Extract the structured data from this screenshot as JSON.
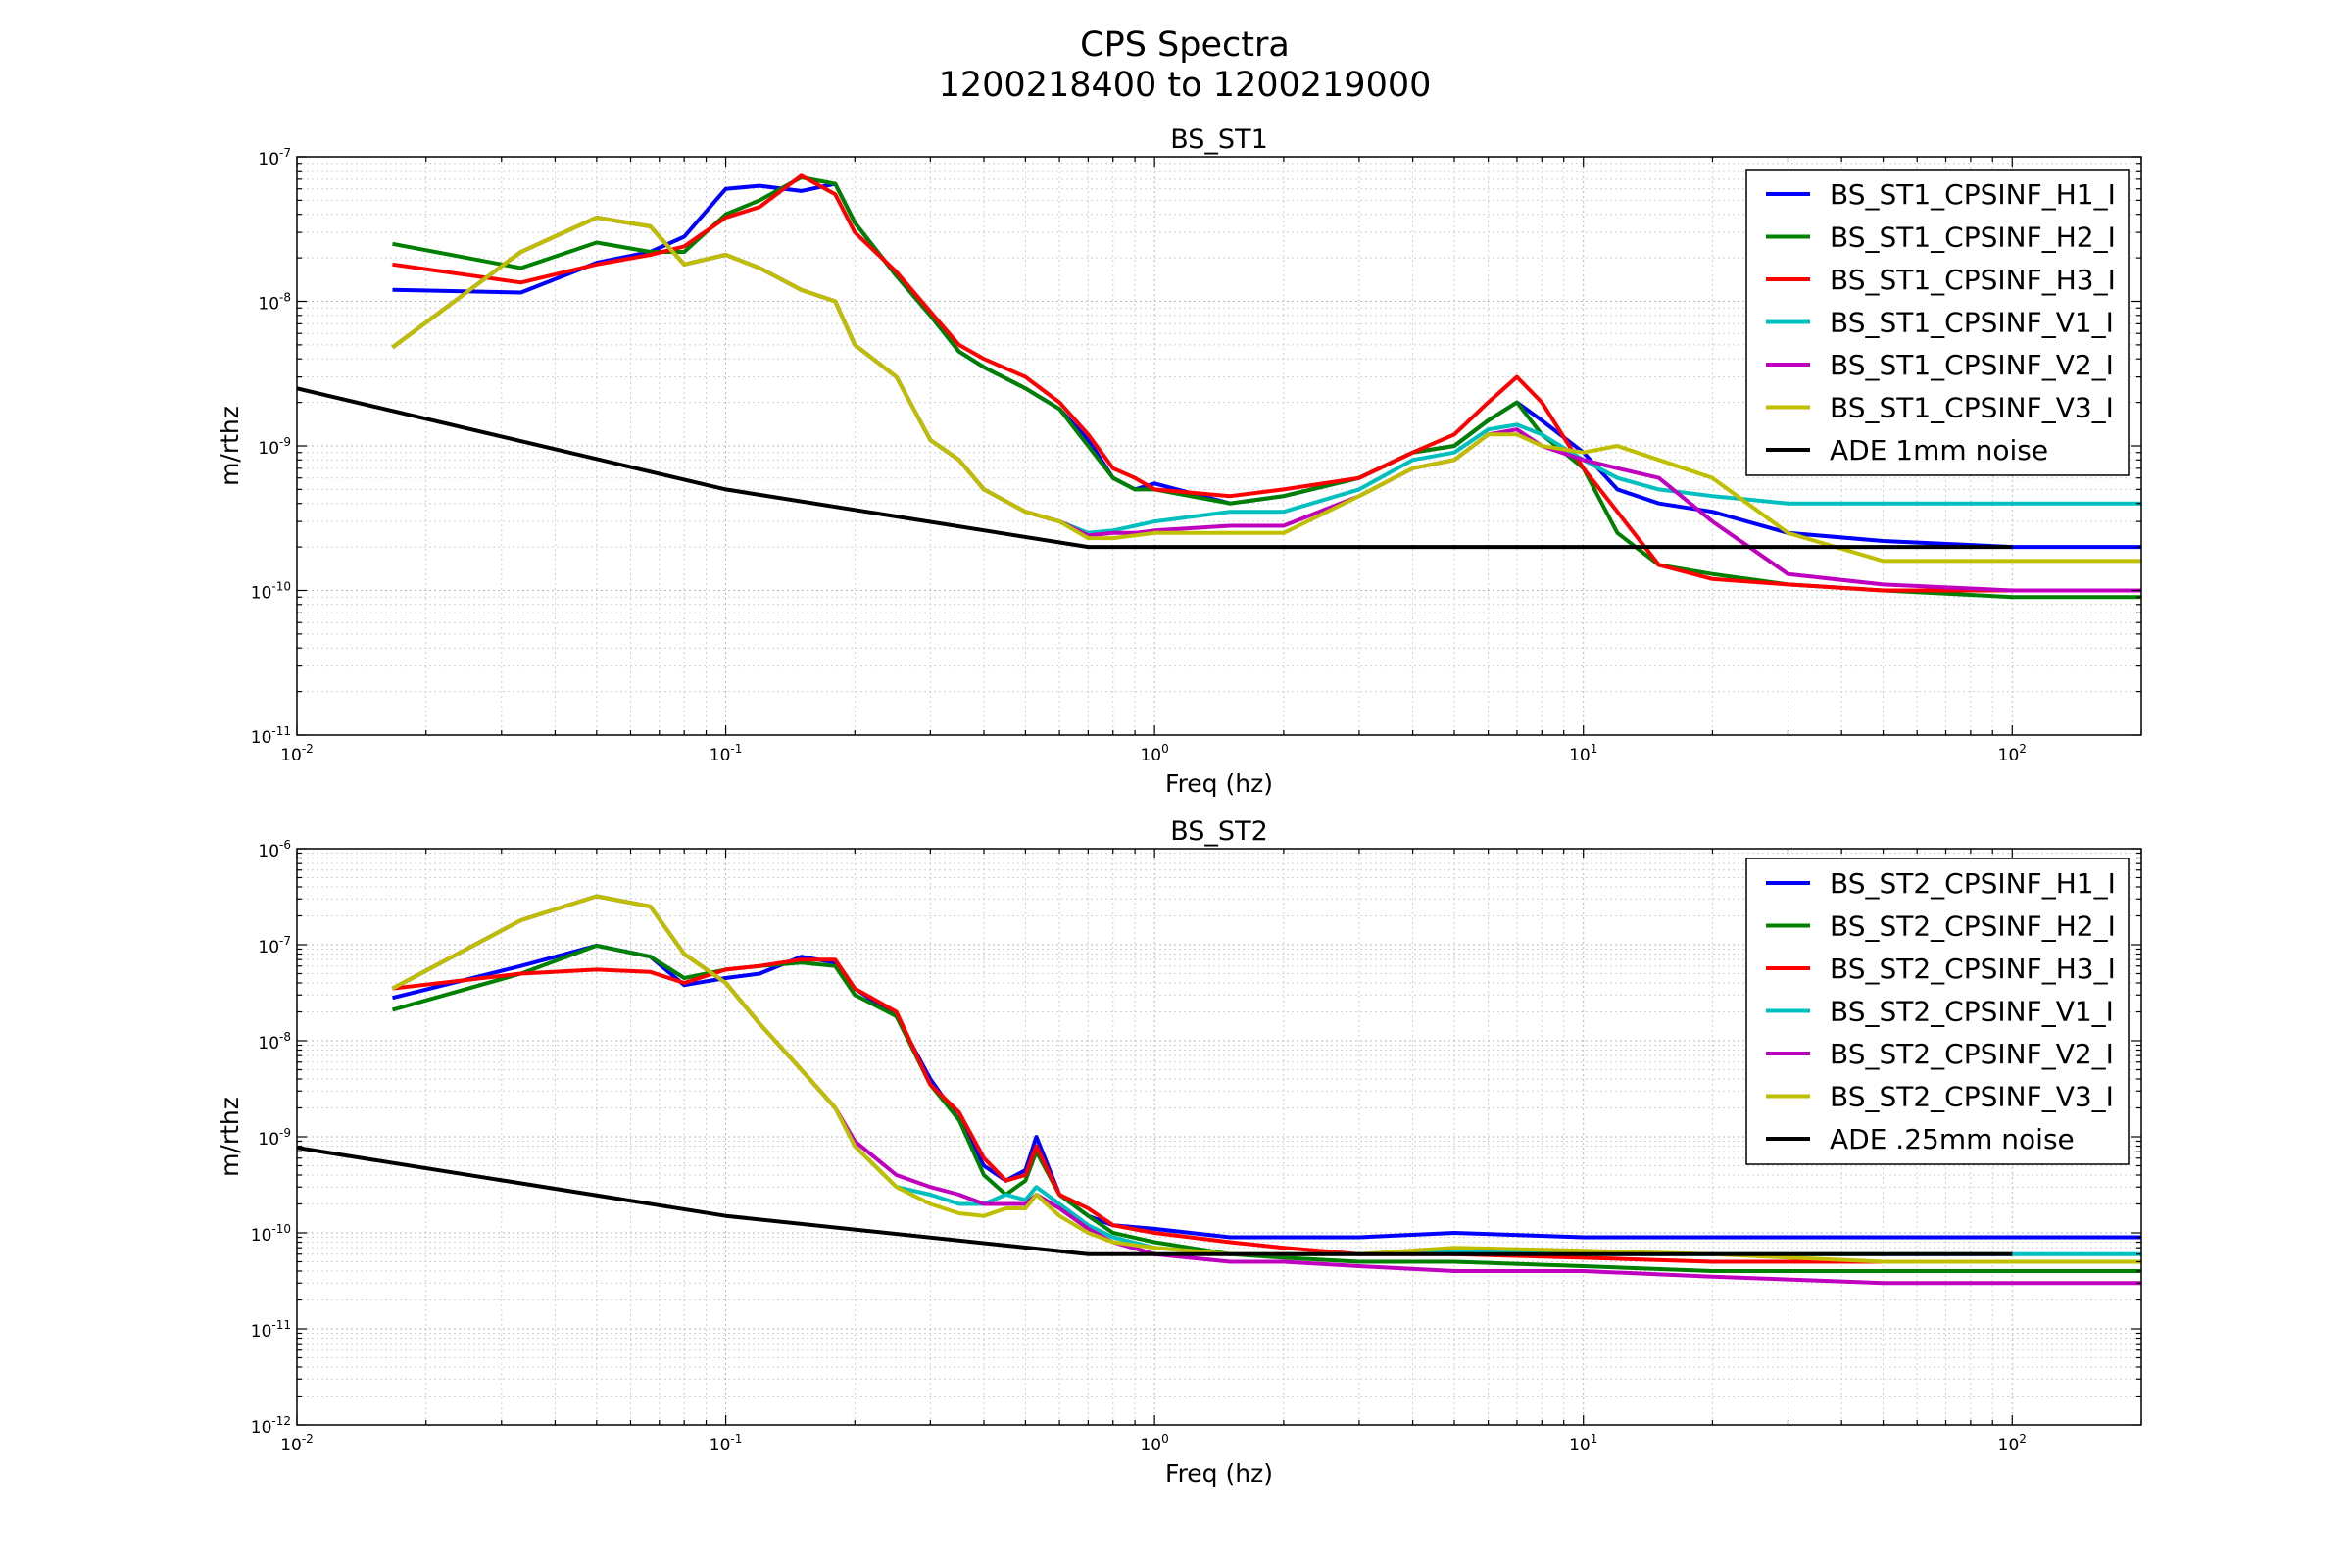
{
  "figure": {
    "title_line1": "CPS Spectra",
    "title_line2": "1200218400 to 1200219000"
  },
  "chart_data": [
    {
      "type": "line",
      "title": "BS_ST1",
      "xlabel": "Freq (hz)",
      "ylabel": "m/rthz",
      "xscale": "log",
      "yscale": "log",
      "xlim": [
        0.01,
        200
      ],
      "ylim": [
        1e-11,
        1e-07
      ],
      "grid": true,
      "legend_position": "top-right",
      "xticks": [
        {
          "base": "10",
          "exp": "-2"
        },
        {
          "base": "10",
          "exp": "-1"
        },
        {
          "base": "10",
          "exp": "0"
        },
        {
          "base": "10",
          "exp": "1"
        },
        {
          "base": "10",
          "exp": "2"
        }
      ],
      "yticks": [
        {
          "base": "10",
          "exp": "-11"
        },
        {
          "base": "10",
          "exp": "-10"
        },
        {
          "base": "10",
          "exp": "-9"
        },
        {
          "base": "10",
          "exp": "-8"
        },
        {
          "base": "10",
          "exp": "-7"
        }
      ],
      "series": [
        {
          "name": "BS_ST1_CPSINF_H1_I",
          "color": "#0000ff",
          "x": [
            0.0167,
            0.0333,
            0.05,
            0.0667,
            0.08,
            0.1,
            0.12,
            0.15,
            0.18,
            0.2,
            0.25,
            0.3,
            0.35,
            0.4,
            0.5,
            0.6,
            0.7,
            0.8,
            0.9,
            1,
            1.5,
            2,
            3,
            4,
            5,
            6,
            7,
            8,
            10,
            12,
            15,
            20,
            30,
            50,
            100,
            200
          ],
          "y": [
            1.2e-08,
            1.15e-08,
            1.85e-08,
            2.2e-08,
            2.8e-08,
            6e-08,
            6.3e-08,
            5.8e-08,
            6.5e-08,
            3.5e-08,
            1.5e-08,
            8e-09,
            4.5e-09,
            3.5e-09,
            2.5e-09,
            1.8e-09,
            1.1e-09,
            6e-10,
            5e-10,
            5.5e-10,
            4e-10,
            4.5e-10,
            6e-10,
            9e-10,
            1e-09,
            1.5e-09,
            2e-09,
            1.5e-09,
            9e-10,
            5e-10,
            4e-10,
            3.5e-10,
            2.5e-10,
            2.2e-10,
            2e-10,
            2e-10
          ]
        },
        {
          "name": "BS_ST1_CPSINF_H2_I",
          "color": "#008000",
          "x": [
            0.0167,
            0.0333,
            0.05,
            0.0667,
            0.08,
            0.1,
            0.12,
            0.15,
            0.18,
            0.2,
            0.25,
            0.3,
            0.35,
            0.4,
            0.5,
            0.6,
            0.7,
            0.8,
            0.9,
            1,
            1.5,
            2,
            3,
            4,
            5,
            6,
            7,
            8,
            10,
            12,
            15,
            20,
            30,
            50,
            100,
            200
          ],
          "y": [
            2.5e-08,
            1.7e-08,
            2.55e-08,
            2.2e-08,
            2.2e-08,
            4e-08,
            5e-08,
            7.2e-08,
            6.5e-08,
            3.5e-08,
            1.5e-08,
            8e-09,
            4.5e-09,
            3.5e-09,
            2.5e-09,
            1.8e-09,
            1e-09,
            6e-10,
            5e-10,
            5e-10,
            4e-10,
            4.5e-10,
            6e-10,
            9e-10,
            1e-09,
            1.5e-09,
            2e-09,
            1.2e-09,
            7e-10,
            2.5e-10,
            1.5e-10,
            1.3e-10,
            1.1e-10,
            1e-10,
            9e-11,
            9e-11
          ]
        },
        {
          "name": "BS_ST1_CPSINF_H3_I",
          "color": "#ff0000",
          "x": [
            0.0167,
            0.0333,
            0.05,
            0.0667,
            0.08,
            0.1,
            0.12,
            0.15,
            0.18,
            0.2,
            0.25,
            0.3,
            0.35,
            0.4,
            0.5,
            0.6,
            0.7,
            0.8,
            0.9,
            1,
            1.5,
            2,
            3,
            4,
            5,
            6,
            7,
            8,
            10,
            12,
            15,
            20,
            30,
            50,
            100,
            200
          ],
          "y": [
            1.8e-08,
            1.35e-08,
            1.8e-08,
            2.1e-08,
            2.4e-08,
            3.8e-08,
            4.5e-08,
            7.4e-08,
            5.5e-08,
            3e-08,
            1.6e-08,
            8.5e-09,
            5e-09,
            4e-09,
            3e-09,
            2e-09,
            1.2e-09,
            7e-10,
            6e-10,
            5e-10,
            4.5e-10,
            5e-10,
            6e-10,
            9e-10,
            1.2e-09,
            2e-09,
            3e-09,
            2e-09,
            7e-10,
            3.5e-10,
            1.5e-10,
            1.2e-10,
            1.1e-10,
            1e-10,
            1e-10,
            1e-10
          ]
        },
        {
          "name": "BS_ST1_CPSINF_V1_I",
          "color": "#00bfbf",
          "x": [
            0.0167,
            0.0333,
            0.05,
            0.0667,
            0.08,
            0.1,
            0.12,
            0.15,
            0.18,
            0.2,
            0.25,
            0.3,
            0.35,
            0.4,
            0.5,
            0.6,
            0.7,
            0.8,
            0.9,
            1,
            1.5,
            2,
            3,
            4,
            5,
            6,
            7,
            8,
            10,
            12,
            15,
            20,
            30,
            50,
            100,
            200
          ],
          "y": [
            4.8e-09,
            2.2e-08,
            3.8e-08,
            3.3e-08,
            1.8e-08,
            2.1e-08,
            1.7e-08,
            1.2e-08,
            1e-08,
            5e-09,
            3e-09,
            1.1e-09,
            8e-10,
            5e-10,
            3.5e-10,
            3e-10,
            2.5e-10,
            2.6e-10,
            2.8e-10,
            3e-10,
            3.5e-10,
            3.5e-10,
            5e-10,
            8e-10,
            9e-10,
            1.3e-09,
            1.4e-09,
            1.2e-09,
            8e-10,
            6e-10,
            5e-10,
            4.5e-10,
            4e-10,
            4e-10,
            4e-10,
            4e-10
          ]
        },
        {
          "name": "BS_ST1_CPSINF_V2_I",
          "color": "#bf00bf",
          "x": [
            0.0167,
            0.0333,
            0.05,
            0.0667,
            0.08,
            0.1,
            0.12,
            0.15,
            0.18,
            0.2,
            0.25,
            0.3,
            0.35,
            0.4,
            0.5,
            0.6,
            0.7,
            0.8,
            0.9,
            1,
            1.5,
            2,
            3,
            4,
            5,
            6,
            7,
            8,
            10,
            12,
            15,
            20,
            30,
            50,
            100,
            200
          ],
          "y": [
            4.8e-09,
            2.2e-08,
            3.8e-08,
            3.3e-08,
            1.8e-08,
            2.1e-08,
            1.7e-08,
            1.2e-08,
            1e-08,
            5e-09,
            3e-09,
            1.1e-09,
            8e-10,
            5e-10,
            3.5e-10,
            3e-10,
            2.4e-10,
            2.5e-10,
            2.5e-10,
            2.6e-10,
            2.8e-10,
            2.8e-10,
            4.5e-10,
            7e-10,
            8e-10,
            1.2e-09,
            1.3e-09,
            1e-09,
            8e-10,
            7e-10,
            6e-10,
            3e-10,
            1.3e-10,
            1.1e-10,
            1e-10,
            1e-10
          ]
        },
        {
          "name": "BS_ST1_CPSINF_V3_I",
          "color": "#bfbf00",
          "x": [
            0.0167,
            0.0333,
            0.05,
            0.0667,
            0.08,
            0.1,
            0.12,
            0.15,
            0.18,
            0.2,
            0.25,
            0.3,
            0.35,
            0.4,
            0.5,
            0.6,
            0.7,
            0.8,
            0.9,
            1,
            1.5,
            2,
            3,
            4,
            5,
            6,
            7,
            8,
            10,
            12,
            15,
            20,
            30,
            50,
            100,
            200
          ],
          "y": [
            4.8e-09,
            2.2e-08,
            3.8e-08,
            3.3e-08,
            1.8e-08,
            2.1e-08,
            1.7e-08,
            1.2e-08,
            1e-08,
            5e-09,
            3e-09,
            1.1e-09,
            8e-10,
            5e-10,
            3.5e-10,
            3e-10,
            2.3e-10,
            2.3e-10,
            2.4e-10,
            2.5e-10,
            2.5e-10,
            2.5e-10,
            4.5e-10,
            7e-10,
            8e-10,
            1.2e-09,
            1.2e-09,
            1e-09,
            9e-10,
            1e-09,
            8e-10,
            6e-10,
            2.5e-10,
            1.6e-10,
            1.6e-10,
            1.6e-10
          ]
        },
        {
          "name": "ADE 1mm noise",
          "color": "#000000",
          "x": [
            0.01,
            0.1,
            0.7,
            100
          ],
          "y": [
            2.5e-09,
            5e-10,
            2e-10,
            2e-10
          ]
        }
      ]
    },
    {
      "type": "line",
      "title": "BS_ST2",
      "xlabel": "Freq (hz)",
      "ylabel": "m/rthz",
      "xscale": "log",
      "yscale": "log",
      "xlim": [
        0.01,
        200
      ],
      "ylim": [
        1e-12,
        1e-06
      ],
      "grid": true,
      "legend_position": "top-right",
      "xticks": [
        {
          "base": "10",
          "exp": "-2"
        },
        {
          "base": "10",
          "exp": "-1"
        },
        {
          "base": "10",
          "exp": "0"
        },
        {
          "base": "10",
          "exp": "1"
        },
        {
          "base": "10",
          "exp": "2"
        }
      ],
      "yticks": [
        {
          "base": "10",
          "exp": "-12"
        },
        {
          "base": "10",
          "exp": "-11"
        },
        {
          "base": "10",
          "exp": "-10"
        },
        {
          "base": "10",
          "exp": "-9"
        },
        {
          "base": "10",
          "exp": "-8"
        },
        {
          "base": "10",
          "exp": "-7"
        },
        {
          "base": "10",
          "exp": "-6"
        }
      ],
      "series": [
        {
          "name": "BS_ST2_CPSINF_H1_I",
          "color": "#0000ff",
          "x": [
            0.0167,
            0.0333,
            0.05,
            0.0667,
            0.08,
            0.1,
            0.12,
            0.15,
            0.18,
            0.2,
            0.25,
            0.3,
            0.35,
            0.4,
            0.45,
            0.5,
            0.53,
            0.6,
            0.7,
            0.8,
            1,
            1.5,
            2,
            3,
            5,
            10,
            20,
            50,
            100,
            200
          ],
          "y": [
            2.8e-08,
            6e-08,
            9.8e-08,
            7.5e-08,
            3.8e-08,
            4.5e-08,
            5e-08,
            7.5e-08,
            6.5e-08,
            3.5e-08,
            1.8e-08,
            4e-09,
            1.5e-09,
            5e-10,
            3.5e-10,
            4.5e-10,
            1e-09,
            2.5e-10,
            1.5e-10,
            1.2e-10,
            1.1e-10,
            9e-11,
            9e-11,
            9e-11,
            1e-10,
            9e-11,
            9e-11,
            9e-11,
            9e-11,
            9e-11
          ]
        },
        {
          "name": "BS_ST2_CPSINF_H2_I",
          "color": "#008000",
          "x": [
            0.0167,
            0.0333,
            0.05,
            0.0667,
            0.08,
            0.1,
            0.12,
            0.15,
            0.18,
            0.2,
            0.25,
            0.3,
            0.35,
            0.4,
            0.45,
            0.5,
            0.53,
            0.6,
            0.7,
            0.8,
            1,
            1.5,
            2,
            3,
            5,
            10,
            20,
            50,
            100,
            200
          ],
          "y": [
            2.1e-08,
            5e-08,
            9.8e-08,
            7.5e-08,
            4.5e-08,
            5.5e-08,
            6e-08,
            6.5e-08,
            6e-08,
            3e-08,
            1.8e-08,
            3.5e-09,
            1.5e-09,
            4e-10,
            2.5e-10,
            3.5e-10,
            7e-10,
            2.5e-10,
            1.5e-10,
            1e-10,
            8e-11,
            6e-11,
            5.5e-11,
            5e-11,
            5e-11,
            4.5e-11,
            4e-11,
            4e-11,
            4e-11,
            4e-11
          ]
        },
        {
          "name": "BS_ST2_CPSINF_H3_I",
          "color": "#ff0000",
          "x": [
            0.0167,
            0.0333,
            0.05,
            0.0667,
            0.08,
            0.1,
            0.12,
            0.15,
            0.18,
            0.2,
            0.25,
            0.3,
            0.35,
            0.4,
            0.45,
            0.5,
            0.53,
            0.6,
            0.7,
            0.8,
            1,
            1.5,
            2,
            3,
            5,
            10,
            20,
            50,
            100,
            200
          ],
          "y": [
            3.5e-08,
            5e-08,
            5.5e-08,
            5.2e-08,
            4e-08,
            5.5e-08,
            6e-08,
            7e-08,
            7e-08,
            3.5e-08,
            2e-08,
            3.5e-09,
            1.8e-09,
            6e-10,
            3.5e-10,
            4e-10,
            8e-10,
            2.5e-10,
            1.8e-10,
            1.2e-10,
            1e-10,
            8e-11,
            7e-11,
            6e-11,
            6e-11,
            5.5e-11,
            5e-11,
            5e-11,
            5e-11,
            5e-11
          ]
        },
        {
          "name": "BS_ST2_CPSINF_V1_I",
          "color": "#00bfbf",
          "x": [
            0.0167,
            0.0333,
            0.05,
            0.0667,
            0.08,
            0.1,
            0.12,
            0.15,
            0.18,
            0.2,
            0.25,
            0.3,
            0.35,
            0.4,
            0.45,
            0.5,
            0.53,
            0.6,
            0.7,
            0.8,
            1,
            1.5,
            2,
            3,
            5,
            10,
            20,
            50,
            100,
            200
          ],
          "y": [
            3.5e-08,
            1.8e-07,
            3.2e-07,
            2.5e-07,
            8e-08,
            4e-08,
            1.5e-08,
            5e-09,
            2e-09,
            8e-10,
            3e-10,
            2.5e-10,
            2e-10,
            2e-10,
            2.5e-10,
            2.2e-10,
            3e-10,
            2e-10,
            1.2e-10,
            9e-11,
            7e-11,
            6e-11,
            6e-11,
            6e-11,
            6.5e-11,
            6e-11,
            6e-11,
            6e-11,
            6e-11,
            6e-11
          ]
        },
        {
          "name": "BS_ST2_CPSINF_V2_I",
          "color": "#bf00bf",
          "x": [
            0.0167,
            0.0333,
            0.05,
            0.0667,
            0.08,
            0.1,
            0.12,
            0.15,
            0.18,
            0.2,
            0.25,
            0.3,
            0.35,
            0.4,
            0.45,
            0.5,
            0.53,
            0.6,
            0.7,
            0.8,
            1,
            1.5,
            2,
            3,
            5,
            10,
            20,
            50,
            100,
            200
          ],
          "y": [
            3.5e-08,
            1.8e-07,
            3.2e-07,
            2.5e-07,
            8e-08,
            4e-08,
            1.5e-08,
            5e-09,
            2e-09,
            9e-10,
            4e-10,
            3e-10,
            2.5e-10,
            2e-10,
            2e-10,
            2e-10,
            2.5e-10,
            1.8e-10,
            1.1e-10,
            8e-11,
            6e-11,
            5e-11,
            5e-11,
            4.5e-11,
            4e-11,
            4e-11,
            3.5e-11,
            3e-11,
            3e-11,
            3e-11
          ]
        },
        {
          "name": "BS_ST2_CPSINF_V3_I",
          "color": "#bfbf00",
          "x": [
            0.0167,
            0.0333,
            0.05,
            0.0667,
            0.08,
            0.1,
            0.12,
            0.15,
            0.18,
            0.2,
            0.25,
            0.3,
            0.35,
            0.4,
            0.45,
            0.5,
            0.53,
            0.6,
            0.7,
            0.8,
            1,
            1.5,
            2,
            3,
            5,
            10,
            20,
            50,
            100,
            200
          ],
          "y": [
            3.5e-08,
            1.8e-07,
            3.2e-07,
            2.5e-07,
            8e-08,
            4e-08,
            1.5e-08,
            5e-09,
            2e-09,
            8e-10,
            3e-10,
            2e-10,
            1.6e-10,
            1.5e-10,
            1.8e-10,
            1.8e-10,
            2.5e-10,
            1.5e-10,
            1e-10,
            8e-11,
            7e-11,
            6e-11,
            6e-11,
            6e-11,
            7e-11,
            6.5e-11,
            6e-11,
            5e-11,
            5e-11,
            5e-11
          ]
        },
        {
          "name": "ADE .25mm noise",
          "color": "#000000",
          "x": [
            0.01,
            0.1,
            0.7,
            100
          ],
          "y": [
            7.7e-10,
            1.5e-10,
            6e-11,
            6e-11
          ]
        }
      ]
    }
  ]
}
